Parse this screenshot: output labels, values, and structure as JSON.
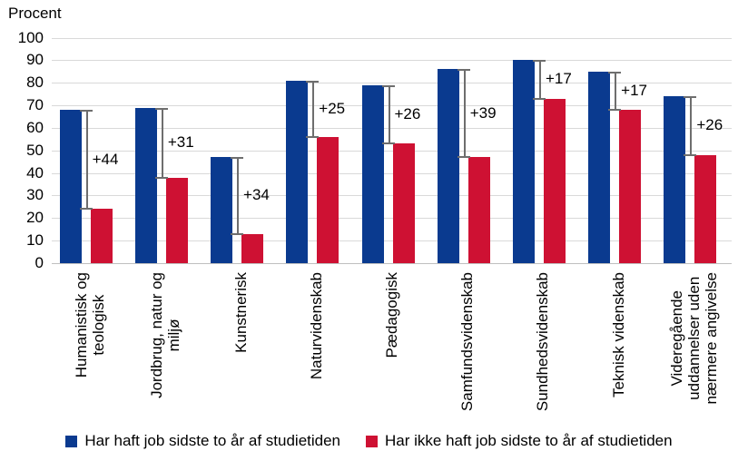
{
  "chart_data": {
    "type": "bar",
    "title": "",
    "y_axis": {
      "label": "Procent",
      "min": 0,
      "max": 100,
      "step": 10
    },
    "grid": "horizontal",
    "legend_position": "bottom",
    "categories": [
      "Humanistisk og teologisk",
      "Jordbrug, natur og miljø",
      "Kunstnerisk",
      "Naturvidenskab",
      "Pædagogisk",
      "Samfundsvidenskab",
      "Sundhedsvidenskab",
      "Teknisk videnskab",
      "Videregående uddannelser uden nærmere angivelse"
    ],
    "category_lines": [
      [
        "Humanistisk og",
        "teologisk"
      ],
      [
        "Jordbrug, natur og",
        "miljø"
      ],
      [
        "Kunstnerisk"
      ],
      [
        "Naturvidenskab"
      ],
      [
        "Pædagogisk"
      ],
      [
        "Samfundsvidenskab"
      ],
      [
        "Sundhedsvidenskab"
      ],
      [
        "Teknisk videnskab"
      ],
      [
        "Videregående",
        "uddannelser uden",
        "nærmere angivelse"
      ]
    ],
    "series": [
      {
        "name": "Har haft job sidste to år af studietiden",
        "color": "#0a3a8f",
        "values": [
          68,
          69,
          47,
          81,
          79,
          86,
          90,
          85,
          74
        ]
      },
      {
        "name": "Har ikke haft job sidste to år af studietiden",
        "color": "#ce1133",
        "values": [
          24,
          38,
          13,
          56,
          53,
          47,
          73,
          68,
          48
        ]
      }
    ],
    "diff_labels": [
      "+44",
      "+31",
      "+34",
      "+25",
      "+26",
      "+39",
      "+17",
      "+17",
      "+26"
    ],
    "grid_color": "#d9d9d9",
    "error_bar_color": "#6e6e6e"
  }
}
